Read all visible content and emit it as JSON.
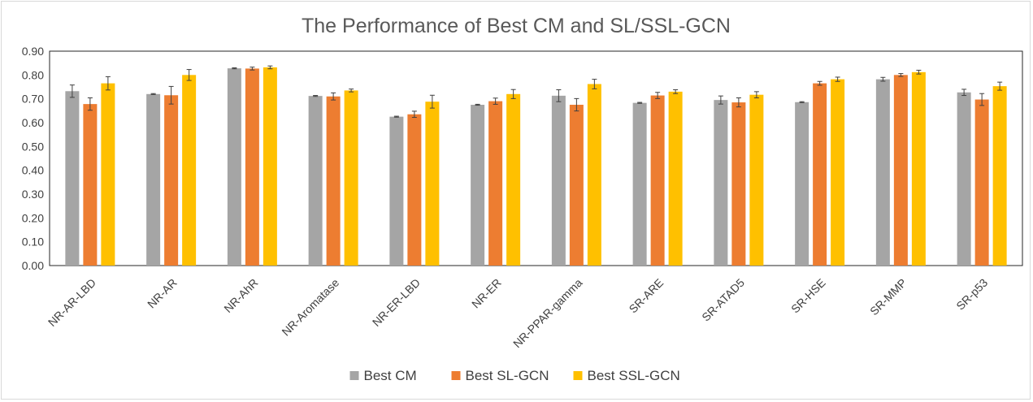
{
  "chart_data": {
    "type": "bar",
    "title": "The Performance of Best CM and SL/SSL-GCN",
    "xlabel": "",
    "ylabel": "",
    "ylim": [
      0,
      0.9
    ],
    "yticks": [
      "0.00",
      "0.10",
      "0.20",
      "0.30",
      "0.40",
      "0.50",
      "0.60",
      "0.70",
      "0.80",
      "0.90"
    ],
    "grid": "none",
    "legend_position": "bottom",
    "categories": [
      "NR-AR-LBD",
      "NR-AR",
      "NR-AhR",
      "NR-Aromatase",
      "NR-ER-LBD",
      "NR-ER",
      "NR-PPAR-gamma",
      "SR-ARE",
      "SR-ATAD5",
      "SR-HSE",
      "SR-MMP",
      "SR-p53"
    ],
    "series": [
      {
        "name": "Best CM",
        "color": "#a5a5a5",
        "values": [
          0.732,
          0.72,
          0.828,
          0.712,
          0.625,
          0.675,
          0.713,
          0.683,
          0.695,
          0.686,
          0.782,
          0.727
        ],
        "errors": [
          0.026,
          0.002,
          0.002,
          0.002,
          0.002,
          0.002,
          0.025,
          0.002,
          0.017,
          0.002,
          0.008,
          0.013
        ]
      },
      {
        "name": "Best SL-GCN",
        "color": "#ed7d31",
        "values": [
          0.678,
          0.715,
          0.827,
          0.71,
          0.635,
          0.69,
          0.675,
          0.714,
          0.685,
          0.765,
          0.8,
          0.697
        ],
        "errors": [
          0.026,
          0.037,
          0.006,
          0.015,
          0.013,
          0.013,
          0.026,
          0.013,
          0.019,
          0.008,
          0.006,
          0.025
        ]
      },
      {
        "name": "Best SSL-GCN",
        "color": "#ffc000",
        "values": [
          0.765,
          0.8,
          0.832,
          0.735,
          0.688,
          0.72,
          0.762,
          0.73,
          0.717,
          0.782,
          0.812,
          0.753
        ],
        "errors": [
          0.028,
          0.023,
          0.006,
          0.006,
          0.027,
          0.019,
          0.02,
          0.008,
          0.013,
          0.009,
          0.008,
          0.017
        ]
      }
    ]
  }
}
